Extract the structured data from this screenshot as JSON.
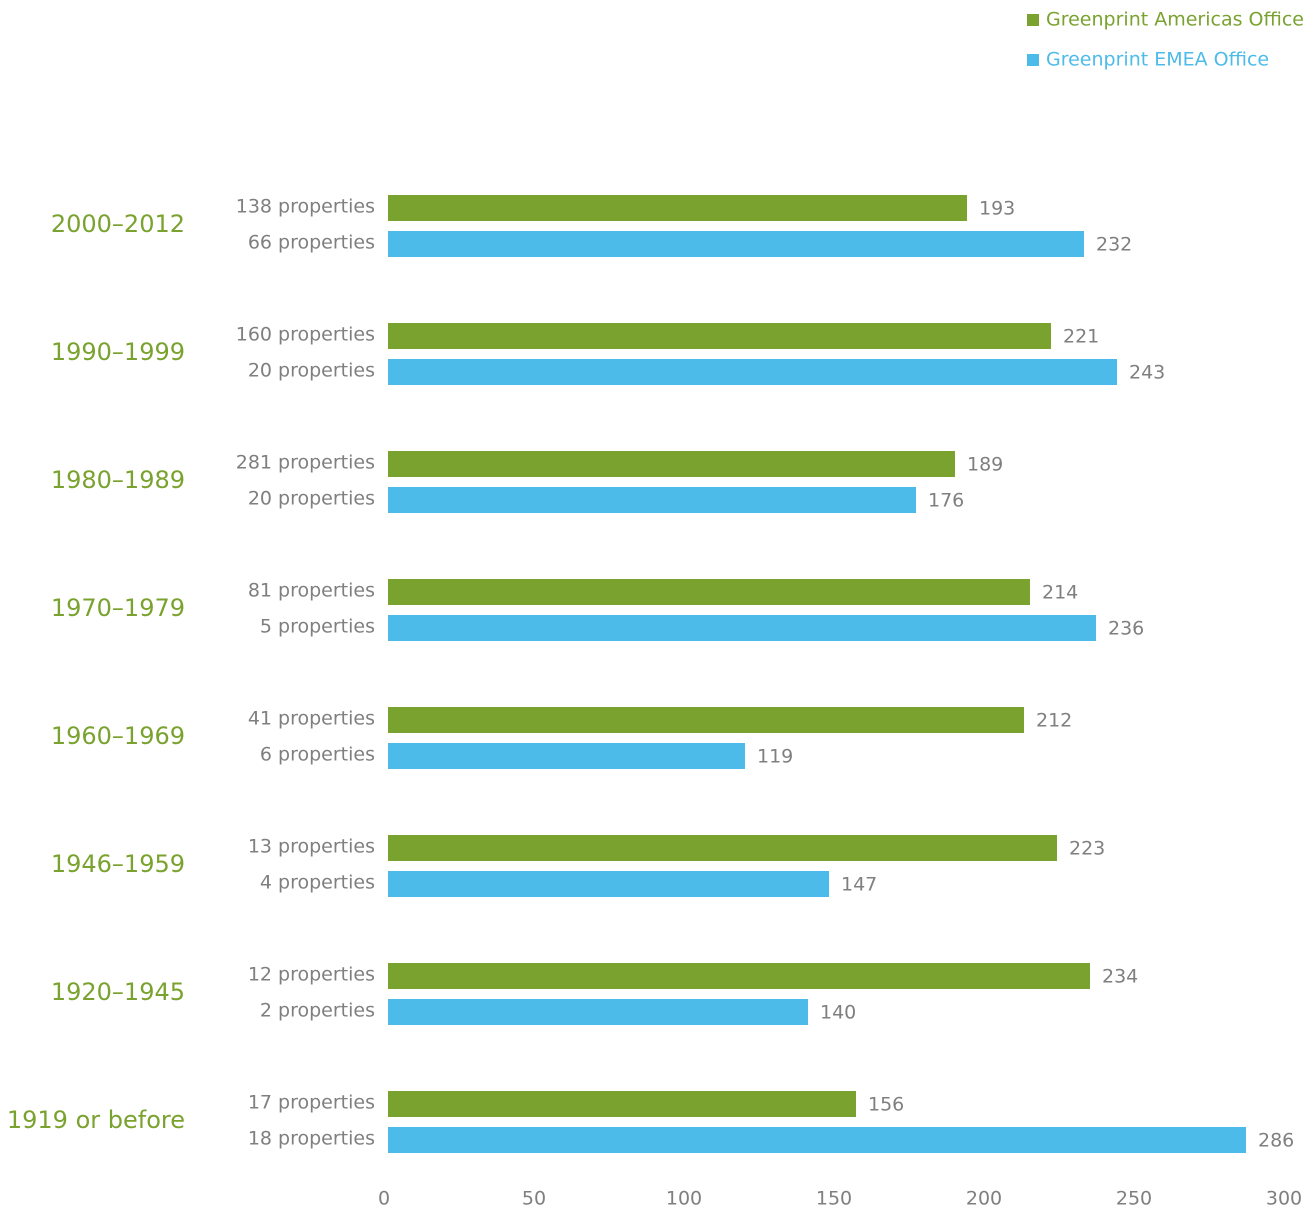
{
  "chart_data": {
    "type": "hbar",
    "categories": [
      "2000–2012",
      "1990–1999",
      "1980–1989",
      "1970–1979",
      "1960–1969",
      "1946–1959",
      "1920–1945",
      "1919 or before"
    ],
    "series": [
      {
        "name": "Greenprint Americas Office",
        "color": "#7aa22f",
        "values": [
          193,
          221,
          189,
          214,
          212,
          223,
          234,
          156
        ],
        "bar_labels": [
          "138 properties",
          "160 properties",
          "281 properties",
          "81 properties",
          "41 properties",
          "13 properties",
          "12 properties",
          "17 properties"
        ]
      },
      {
        "name": "Greenprint EMEA Office",
        "color": "#4dbbea",
        "values": [
          232,
          243,
          176,
          236,
          119,
          147,
          140,
          286
        ],
        "bar_labels": [
          "66 properties",
          "20 properties",
          "20 properties",
          "5 properties",
          "6 properties",
          "4 properties",
          "2 properties",
          "18 properties"
        ]
      }
    ],
    "category_color": "#7aa22f",
    "xlim": [
      0,
      300
    ],
    "xticks": [
      0,
      50,
      100,
      150,
      200,
      250,
      300
    ],
    "legend": "top-right",
    "grid": false
  }
}
